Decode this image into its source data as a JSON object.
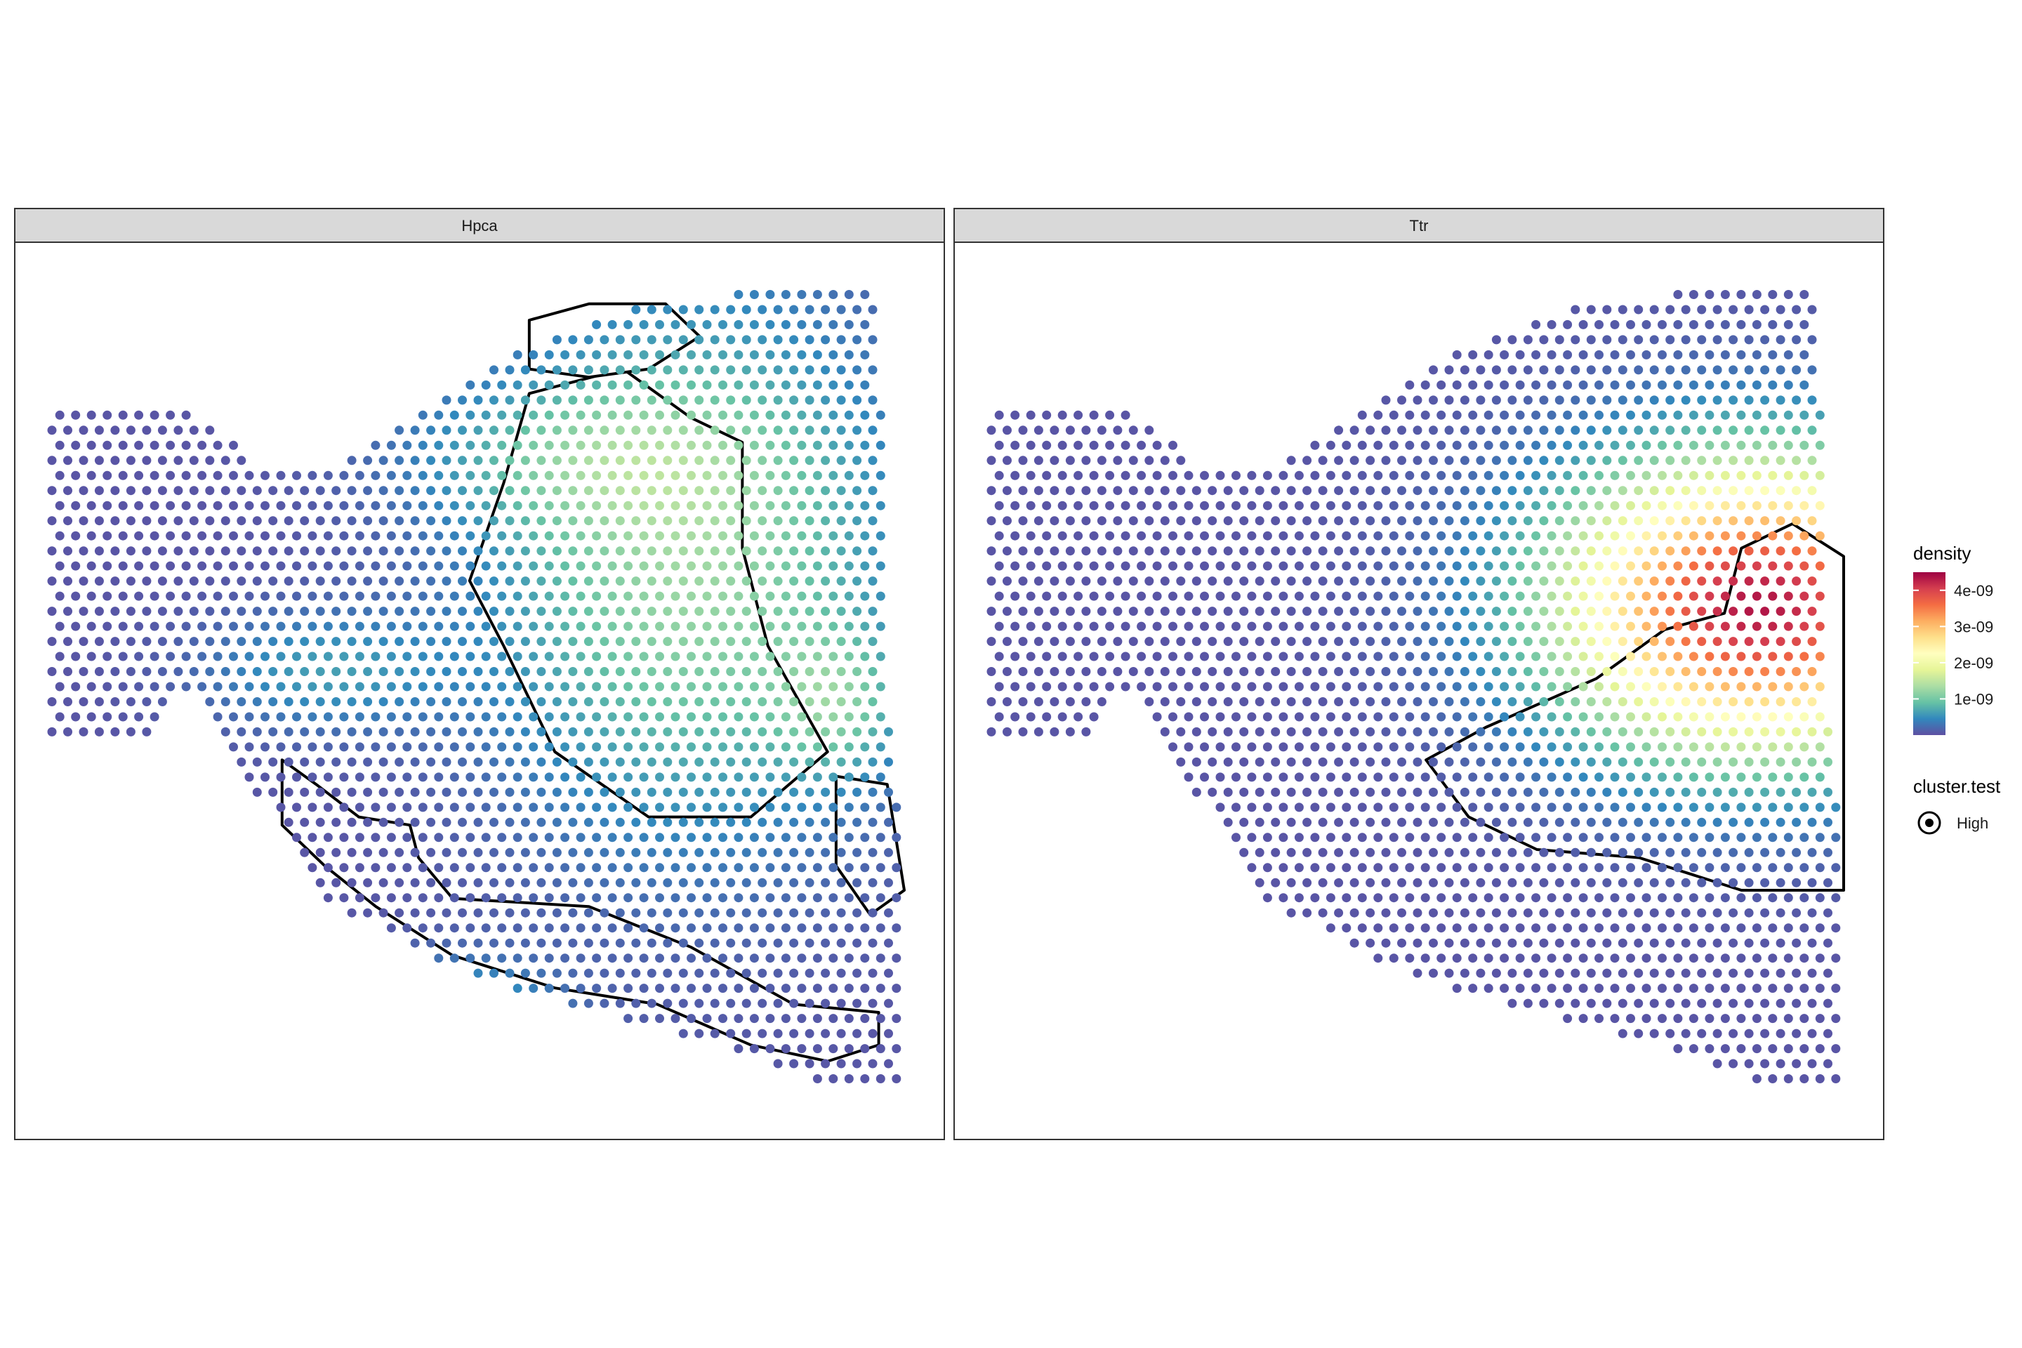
{
  "chart_data": {
    "type": "scatter",
    "description_free": true,
    "facets": [
      "Hpca",
      "Ttr"
    ],
    "color_scale": {
      "title": "density",
      "palette": [
        "#5E4FA2",
        "#3288BD",
        "#66C2A5",
        "#ABDDA4",
        "#E6F598",
        "#FFFFBF",
        "#FEE08B",
        "#FDAE61",
        "#F46D43",
        "#D53E4F",
        "#9E0142"
      ],
      "breaks": [
        1e-09,
        2e-09,
        3e-09,
        4e-09
      ],
      "labels": [
        "1e-09",
        "2e-09",
        "3e-09",
        "4e-09"
      ],
      "limits": [
        0,
        4.5e-09
      ]
    },
    "shape_legend": {
      "title": "cluster.test",
      "entries": [
        "High"
      ]
    },
    "grid": false,
    "legend_position": "right",
    "hotspots": {
      "Hpca": [
        {
          "x": 0.75,
          "y": 0.35,
          "sx": 0.16,
          "sy": 0.22,
          "peak": 1.2e-09
        },
        {
          "x": 0.48,
          "y": 0.91,
          "sx": 0.08,
          "sy": 0.05,
          "peak": 7e-10
        },
        {
          "x": 0.92,
          "y": 0.52,
          "sx": 0.05,
          "sy": 0.06,
          "peak": 7e-10
        },
        {
          "x": 0.32,
          "y": 0.48,
          "sx": 0.1,
          "sy": 0.05,
          "peak": 5.5e-10
        },
        {
          "x": 0.62,
          "y": 0.22,
          "sx": 0.14,
          "sy": 0.06,
          "peak": 5.5e-10
        }
      ],
      "Ttr": [
        {
          "x": 0.9,
          "y": 0.4,
          "sx": 0.16,
          "sy": 0.12,
          "peak": 4.3e-09
        }
      ]
    }
  }
}
